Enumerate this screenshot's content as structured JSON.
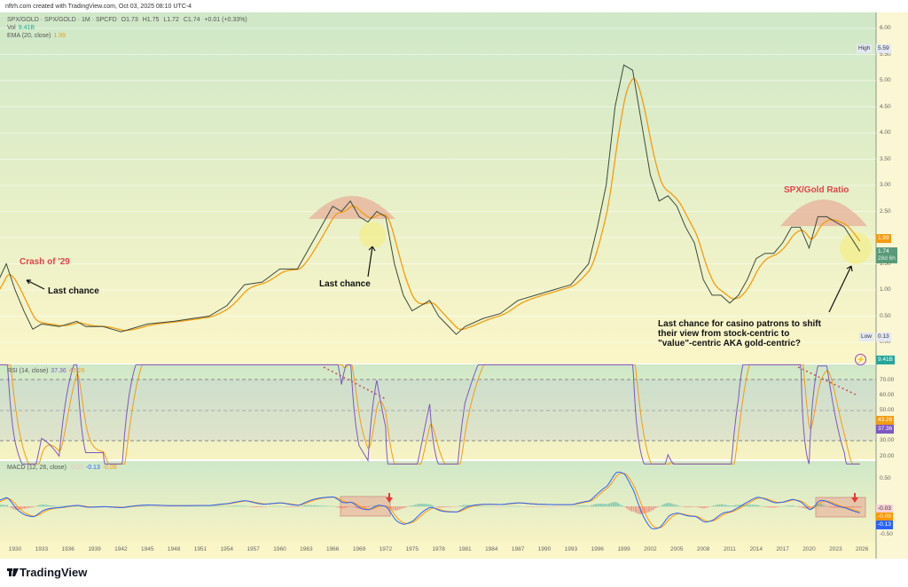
{
  "header": {
    "created": "nftrh.com created with TradingView.com, Oct 03, 2025 08:10 UTC-4"
  },
  "legend": {
    "symbol": "SPX/GOLD · SPX/GOLD · 1M · SPCFD",
    "open": "O1.73",
    "high": "H1.75",
    "low": "L1.72",
    "close": "C1.74",
    "change": "+0.01 (+0.33%)",
    "vol_label": "Vol",
    "vol_value": "9.41B",
    "ema_label": "EMA (20, close)",
    "ema_value": "1.99",
    "rsi_label": "RSI (14, close)",
    "rsi_value": "37.36",
    "rsi_ma": "43.26",
    "macd_label": "MACD (12, 26, close)",
    "macd_hist": "-0.03",
    "macd_value": "-0.13",
    "macd_signal": "-0.09"
  },
  "annotations": {
    "crash": "Crash of '29",
    "last_chance_1": "Last chance",
    "last_chance_2": "Last chance",
    "ratio_title": "SPX/Gold Ratio",
    "note": "Last chance for casino patrons to shift\ntheir view from stock-centric to\n\"value\"-centric AKA gold-centric?"
  },
  "badges": {
    "high_label": "High",
    "high": "5.59",
    "ema": "1.99",
    "price": "1.74",
    "countdown": "28d 6h",
    "low_label": "Low",
    "low": "0.13",
    "vol": "9.41B",
    "rsi_ma": "43.26",
    "rsi": "37.36",
    "macd_hist": "-0.03",
    "macd_signal": "-0.09",
    "macd": "-0.13"
  },
  "colors": {
    "price": "#3d4a3d",
    "ema": "#f39c12",
    "rsi": "#7e57c2",
    "macd": "#2962ff",
    "signal": "#ff9800",
    "annotation_red": "#e0454f",
    "up": "#26a69a",
    "down": "#ef5350"
  },
  "chart_data": [
    {
      "type": "line",
      "title": "SPX/GOLD 1M",
      "ylim": [
        0,
        6
      ],
      "yticks": [
        "6.00",
        "5.50",
        "5.00",
        "4.50",
        "4.00",
        "3.50",
        "3.00",
        "2.50",
        "2.00",
        "1.50",
        "1.00",
        "0.50",
        "0.00"
      ],
      "x": [
        1927,
        1929,
        1930,
        1931,
        1932,
        1933,
        1935,
        1937,
        1938,
        1940,
        1942,
        1945,
        1948,
        1950,
        1952,
        1954,
        1956,
        1958,
        1960,
        1962,
        1963,
        1964,
        1966,
        1967,
        1968,
        1969,
        1970,
        1971,
        1972,
        1973,
        1974,
        1975,
        1976,
        1977,
        1978,
        1980,
        1981,
        1983,
        1985,
        1987,
        1989,
        1991,
        1993,
        1995,
        1996,
        1997,
        1998,
        1999,
        2000,
        2001,
        2002,
        2003,
        2004,
        2005,
        2006,
        2007,
        2008,
        2009,
        2010,
        2011,
        2012,
        2013,
        2014,
        2015,
        2016,
        2017,
        2018,
        2019,
        2020,
        2021,
        2022,
        2023,
        2024,
        2025.75
      ],
      "y": [
        0.78,
        1.5,
        1.0,
        0.6,
        0.25,
        0.35,
        0.3,
        0.4,
        0.3,
        0.3,
        0.2,
        0.35,
        0.4,
        0.45,
        0.5,
        0.7,
        1.1,
        1.15,
        1.4,
        1.4,
        1.7,
        2.0,
        2.6,
        2.5,
        2.7,
        2.4,
        2.3,
        2.5,
        2.4,
        1.5,
        0.9,
        0.6,
        0.7,
        0.8,
        0.5,
        0.15,
        0.3,
        0.45,
        0.55,
        0.8,
        0.9,
        1.0,
        1.1,
        1.5,
        2.2,
        3.0,
        4.5,
        5.3,
        5.2,
        4.2,
        3.2,
        2.7,
        2.8,
        2.6,
        2.2,
        1.9,
        1.2,
        0.9,
        0.9,
        0.75,
        0.9,
        1.2,
        1.6,
        1.7,
        1.7,
        1.9,
        2.2,
        2.2,
        1.8,
        2.4,
        2.4,
        2.3,
        2.2,
        1.74
      ],
      "series_overlay": "EMA (20, close)"
    },
    {
      "type": "line",
      "title": "RSI (14, close)",
      "ylim": [
        15,
        80
      ],
      "yticks": [
        "70.00",
        "60.00",
        "50.00",
        "30.00",
        "20.00"
      ]
    },
    {
      "type": "line",
      "title": "MACD (12, 26, close)",
      "ylim": [
        -0.6,
        0.6
      ],
      "yticks": [
        "0.50",
        "-0.50"
      ]
    },
    {
      "xticks": [
        "1930",
        "1933",
        "1936",
        "1939",
        "1942",
        "1945",
        "1948",
        "1951",
        "1954",
        "1957",
        "1960",
        "1963",
        "1966",
        "1969",
        "1972",
        "1975",
        "1978",
        "1981",
        "1984",
        "1987",
        "1990",
        "1993",
        "1996",
        "1999",
        "2002",
        "2005",
        "2008",
        "2011",
        "2014",
        "2017",
        "2020",
        "2023",
        "2026"
      ]
    }
  ],
  "footer": {
    "brand": "TradingView"
  }
}
